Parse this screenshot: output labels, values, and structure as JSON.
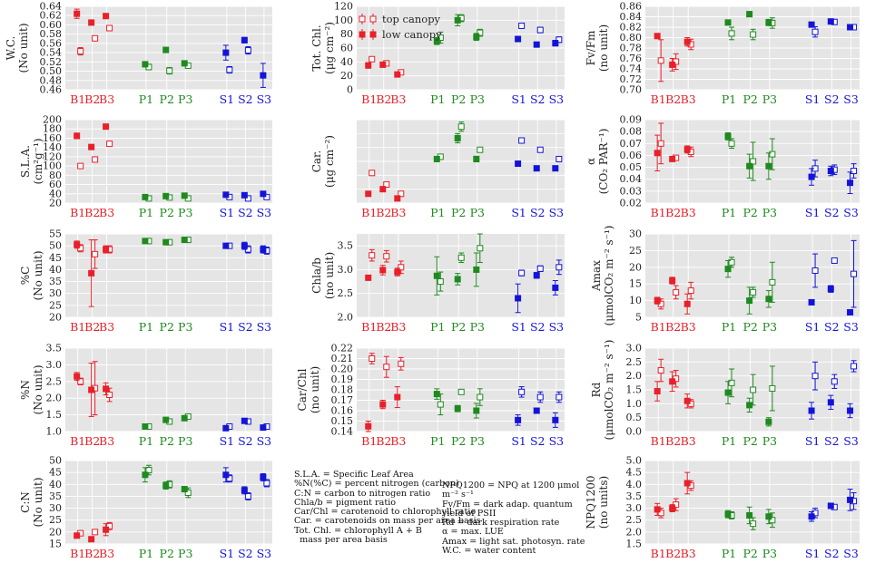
{
  "colors": {
    "B": "#e8202a",
    "P": "#1f8a1f",
    "S": "#1414d8",
    "panel_bg": "#e5e5e5",
    "grid": "#ffffff",
    "axis": "#555555"
  },
  "legend": {
    "top_label": "top canopy",
    "low_label": "low canopy"
  },
  "glossary": {
    "left": [
      "S.L.A. = Specific Leaf Area",
      "%N(%C) = percent nitrogen (carbon)",
      "C:N = carbon to nitrogen ratio",
      "Chla/b = pigment ratio",
      "Car/Chl = carotenoid to chlorophyll ratio",
      "Car. = carotenoids on mass per area basis",
      "Tot. Chl. = chlorophyll A + B",
      "  mass per area basis"
    ],
    "right": [
      "NPQ1200 = NPQ at 1200 μmol m⁻² s⁻¹",
      "Fv/Fm = dark adap. quantum yield of PSII",
      "Rd = dark respiration rate",
      "α = max. LUE",
      "Amax = light sat. photosyn. rate",
      "W.C. = water content"
    ]
  },
  "chart_data": [
    {
      "id": "wc",
      "type": "scatter",
      "ylabel_lines": [
        "W.C.",
        "(No unit)"
      ],
      "ylim": [
        0.46,
        0.64
      ],
      "yticks": [
        "0.46",
        "0.48",
        "0.50",
        "0.52",
        "0.54",
        "0.56",
        "0.58",
        "0.60",
        "0.62",
        "0.64"
      ],
      "categories": [
        "B1",
        "B2",
        "B3",
        "P1",
        "P2",
        "P3",
        "S1",
        "S2",
        "S3"
      ],
      "series": [
        {
          "name": "top canopy",
          "values": [
            0.543,
            0.571,
            0.593,
            0.509,
            0.501,
            0.512,
            0.503,
            0.545,
            null
          ],
          "err": [
            0.008,
            0.003,
            0.004,
            0.006,
            0.007,
            0.004,
            0.007,
            0.008,
            0
          ]
        },
        {
          "name": "low canopy",
          "values": [
            0.624,
            0.605,
            0.619,
            0.515,
            0.546,
            0.517,
            0.54,
            0.567,
            0.491
          ],
          "err": [
            0.01,
            0.003,
            0.002,
            0.004,
            0.004,
            0.003,
            0.016,
            0.006,
            0.026
          ]
        }
      ]
    },
    {
      "id": "totchl",
      "type": "scatter",
      "ylabel_lines": [
        "Tot. Chl.",
        "(μg cm⁻²)"
      ],
      "ylim": [
        0,
        120
      ],
      "yticks": [
        "0",
        "20",
        "40",
        "60",
        "80",
        "100",
        "120"
      ],
      "categories": [
        "B1",
        "B2",
        "B3",
        "P1",
        "P2",
        "P3",
        "S1",
        "S2",
        "S3"
      ],
      "series": [
        {
          "name": "top canopy",
          "values": [
            44,
            38,
            25,
            75,
            103,
            82,
            92,
            86,
            72
          ],
          "err": [
            3,
            2,
            2,
            8,
            5,
            5,
            3,
            4,
            4
          ]
        },
        {
          "name": "low canopy",
          "values": [
            35,
            36,
            22,
            70,
            100,
            76,
            73,
            65,
            67
          ],
          "err": [
            4,
            3,
            2,
            5,
            8,
            5,
            3,
            3,
            4
          ]
        }
      ]
    },
    {
      "id": "fvfm",
      "type": "scatter",
      "ylabel_lines": [
        "Fv/Fm",
        "(no unit)"
      ],
      "ylim": [
        0.7,
        0.86
      ],
      "yticks": [
        "0.70",
        "0.72",
        "0.74",
        "0.76",
        "0.78",
        "0.80",
        "0.82",
        "0.84",
        "0.86"
      ],
      "categories": [
        "B1",
        "B2",
        "B3",
        "P1",
        "P2",
        "P3",
        "S1",
        "S2",
        "S3"
      ],
      "series": [
        {
          "name": "top canopy",
          "values": [
            0.756,
            0.754,
            0.787,
            0.808,
            0.806,
            0.828,
            0.811,
            0.83,
            0.82
          ],
          "err": [
            0.04,
            0.015,
            0.01,
            0.012,
            0.01,
            0.01,
            0.01,
            0.003,
            0.004
          ]
        },
        {
          "name": "low canopy",
          "values": [
            0.803,
            0.748,
            0.792,
            0.829,
            0.845,
            0.829,
            0.825,
            0.831,
            0.82
          ],
          "err": [
            0.004,
            0.012,
            0.008,
            0.002,
            0.005,
            0.006,
            0.004,
            0.003,
            0.004
          ]
        }
      ]
    },
    {
      "id": "sla",
      "type": "scatter",
      "ylabel_lines": [
        "S.L.A.",
        "(cm²g⁻¹)"
      ],
      "ylim": [
        20,
        200
      ],
      "yticks": [
        "20",
        "40",
        "60",
        "80",
        "100",
        "120",
        "140",
        "160",
        "180",
        "200"
      ],
      "categories": [
        "B1",
        "B2",
        "B3",
        "P1",
        "P2",
        "P3",
        "S1",
        "S2",
        "S3"
      ],
      "series": [
        {
          "name": "top canopy",
          "values": [
            100,
            114,
            148,
            30,
            32,
            30,
            33,
            30,
            33
          ],
          "err": [
            2,
            2,
            3,
            2,
            2,
            2,
            2,
            2,
            2
          ]
        },
        {
          "name": "low canopy",
          "values": [
            165,
            141,
            185,
            33,
            35,
            36,
            38,
            37,
            40
          ],
          "err": [
            6,
            3,
            3,
            3,
            3,
            3,
            3,
            3,
            4
          ]
        }
      ]
    },
    {
      "id": "car",
      "type": "scatter",
      "ylabel_lines": [
        "Car.",
        "(μg cm⁻²)"
      ],
      "ylim": [
        3,
        21
      ],
      "yticks": [],
      "categories": [
        "B1",
        "B2",
        "B3",
        "P1",
        "P2",
        "P3",
        "S1",
        "S2",
        "S3"
      ],
      "series": [
        {
          "name": "top canopy",
          "values": [
            9.5,
            7.0,
            5.0,
            13.0,
            19.5,
            14.5,
            16.5,
            14.5,
            12.5
          ],
          "err": [
            0.4,
            0.4,
            0.4,
            0.5,
            1.0,
            0.5,
            0.4,
            0.4,
            0.4
          ]
        },
        {
          "name": "low canopy",
          "values": [
            5.0,
            6.0,
            4.0,
            12.5,
            17.0,
            12.5,
            11.5,
            10.5,
            10.5
          ],
          "err": [
            0.4,
            0.5,
            0.3,
            0.5,
            1.0,
            0.6,
            0.4,
            0.4,
            0.4
          ]
        }
      ]
    },
    {
      "id": "alpha",
      "type": "scatter",
      "ylabel_lines": [
        "α",
        "(CO₂ PAR⁻¹)"
      ],
      "ylim": [
        0.02,
        0.09
      ],
      "yticks": [
        "0.02",
        "0.03",
        "0.04",
        "0.05",
        "0.06",
        "0.07",
        "0.08",
        "0.09"
      ],
      "categories": [
        "B1",
        "B2",
        "B3",
        "P1",
        "P2",
        "P3",
        "S1",
        "S2",
        "S3"
      ],
      "series": [
        {
          "name": "top canopy",
          "values": [
            0.07,
            0.058,
            0.063,
            0.07,
            0.055,
            0.061,
            0.049,
            0.048,
            0.047
          ],
          "err": [
            0.017,
            0.002,
            0.004,
            0.004,
            0.016,
            0.013,
            0.007,
            0.004,
            0.006
          ]
        },
        {
          "name": "low canopy",
          "values": [
            0.062,
            0.057,
            0.065,
            0.076,
            0.051,
            0.051,
            0.042,
            0.047,
            0.037
          ],
          "err": [
            0.015,
            0.002,
            0.003,
            0.003,
            0.01,
            0.011,
            0.007,
            0.004,
            0.009
          ]
        }
      ]
    },
    {
      "id": "pc",
      "type": "scatter",
      "ylabel_lines": [
        "%C",
        "(No unit)"
      ],
      "ylim": [
        20,
        55
      ],
      "yticks": [
        "20",
        "25",
        "30",
        "35",
        "40",
        "45",
        "50",
        "55"
      ],
      "categories": [
        "B1",
        "B2",
        "B3",
        "P1",
        "P2",
        "P3",
        "S1",
        "S2",
        "S3"
      ],
      "series": [
        {
          "name": "top canopy",
          "values": [
            49,
            46.5,
            48.5,
            52,
            51.5,
            52.5,
            50,
            48.5,
            48
          ],
          "err": [
            1.5,
            6,
            1.5,
            0.6,
            0.6,
            0.5,
            0.7,
            1.5,
            1.5
          ]
        },
        {
          "name": "low canopy",
          "values": [
            50.5,
            38.5,
            48.5,
            52,
            51.5,
            52.5,
            50,
            50,
            48.5
          ],
          "err": [
            1.5,
            14,
            1.5,
            0.6,
            0.6,
            0.5,
            0.7,
            1.5,
            1.5
          ]
        }
      ]
    },
    {
      "id": "chlab",
      "type": "scatter",
      "ylabel_lines": [
        "Chla/b",
        "(no unit)"
      ],
      "ylim": [
        2.0,
        3.75
      ],
      "yticks": [
        "2.0",
        "2.5",
        "3.0",
        "3.5"
      ],
      "categories": [
        "B1",
        "B2",
        "B3",
        "P1",
        "P2",
        "P3",
        "S1",
        "S2",
        "S3"
      ],
      "series": [
        {
          "name": "top canopy",
          "values": [
            3.3,
            3.28,
            3.05,
            2.75,
            3.25,
            3.45,
            2.93,
            3.02,
            3.05
          ],
          "err": [
            0.12,
            0.12,
            0.13,
            0.2,
            0.1,
            0.3,
            0.06,
            0.06,
            0.15
          ]
        },
        {
          "name": "low canopy",
          "values": [
            2.83,
            2.99,
            2.95,
            2.87,
            2.8,
            3.0,
            2.4,
            2.88,
            2.62
          ],
          "err": [
            0.04,
            0.1,
            0.08,
            0.4,
            0.12,
            0.35,
            0.3,
            0.06,
            0.15
          ]
        }
      ]
    },
    {
      "id": "amax",
      "type": "scatter",
      "ylabel_lines": [
        "Amax",
        "(μmolCO₂ m⁻² s⁻¹)"
      ],
      "ylim": [
        5,
        30
      ],
      "yticks": [
        "5",
        "10",
        "15",
        "20",
        "25",
        "30"
      ],
      "categories": [
        "B1",
        "B2",
        "B3",
        "P1",
        "P2",
        "P3",
        "S1",
        "S2",
        "S3"
      ],
      "series": [
        {
          "name": "top canopy",
          "values": [
            9,
            12.5,
            13,
            21.5,
            12.5,
            15.5,
            19,
            22,
            18
          ],
          "err": [
            1.5,
            2,
            2.5,
            1.5,
            1.5,
            6,
            5,
            0.4,
            10
          ]
        },
        {
          "name": "low canopy",
          "values": [
            10,
            16,
            9,
            19.5,
            10,
            10.5,
            9.5,
            13.5,
            6.5
          ],
          "err": [
            1,
            1,
            3,
            2.5,
            4,
            2.5,
            0.7,
            1,
            0.4
          ]
        }
      ]
    },
    {
      "id": "pn",
      "type": "scatter",
      "ylabel_lines": [
        "%N",
        "(No unit)"
      ],
      "ylim": [
        1.0,
        3.5
      ],
      "yticks": [
        "1.0",
        "1.5",
        "2.0",
        "2.5",
        "3.0",
        "3.5"
      ],
      "categories": [
        "B1",
        "B2",
        "B3",
        "P1",
        "P2",
        "P3",
        "S1",
        "S2",
        "S3"
      ],
      "series": [
        {
          "name": "top canopy",
          "values": [
            2.5,
            2.3,
            2.1,
            1.15,
            1.3,
            1.45,
            1.15,
            1.3,
            1.15
          ],
          "err": [
            0.1,
            0.8,
            0.2,
            0.04,
            0.04,
            0.05,
            0.04,
            0.05,
            0.04
          ]
        },
        {
          "name": "low canopy",
          "values": [
            2.65,
            2.25,
            2.28,
            1.15,
            1.35,
            1.4,
            1.1,
            1.32,
            1.12
          ],
          "err": [
            0.12,
            0.8,
            0.18,
            0.04,
            0.04,
            0.05,
            0.04,
            0.05,
            0.04
          ]
        }
      ]
    },
    {
      "id": "carchl",
      "type": "scatter",
      "ylabel_lines": [
        "Car/Chl",
        "(no unit)"
      ],
      "ylim": [
        0.14,
        0.22
      ],
      "yticks": [
        "0.14",
        "0.15",
        "0.16",
        "0.17",
        "0.18",
        "0.19",
        "0.20",
        "0.21",
        "0.22"
      ],
      "categories": [
        "B1",
        "B2",
        "B3",
        "P1",
        "P2",
        "P3",
        "S1",
        "S2",
        "S3"
      ],
      "series": [
        {
          "name": "top canopy",
          "values": [
            0.21,
            0.202,
            0.205,
            0.166,
            0.178,
            0.173,
            0.178,
            0.173,
            0.173
          ],
          "err": [
            0.005,
            0.01,
            0.006,
            0.01,
            0.001,
            0.008,
            0.005,
            0.005,
            0.005
          ]
        },
        {
          "name": "low canopy",
          "values": [
            0.145,
            0.166,
            0.173,
            0.176,
            0.162,
            0.16,
            0.151,
            0.16,
            0.151
          ],
          "err": [
            0.005,
            0.004,
            0.01,
            0.005,
            0.003,
            0.007,
            0.005,
            0.002,
            0.007
          ]
        }
      ]
    },
    {
      "id": "rd",
      "type": "scatter",
      "ylabel_lines": [
        "Rd",
        "(μmolCO₂ m⁻² s⁻¹)"
      ],
      "ylim": [
        0.0,
        3.0
      ],
      "yticks": [
        "0.0",
        "0.5",
        "1.0",
        "1.5",
        "2.0",
        "2.5",
        "3.0"
      ],
      "categories": [
        "B1",
        "B2",
        "B3",
        "P1",
        "P2",
        "P3",
        "S1",
        "S2",
        "S3"
      ],
      "series": [
        {
          "name": "top canopy",
          "values": [
            2.2,
            1.9,
            1.0,
            1.75,
            1.5,
            1.55,
            2.0,
            1.8,
            2.35
          ],
          "err": [
            0.4,
            0.3,
            0.15,
            0.5,
            0.55,
            0.8,
            0.5,
            0.25,
            0.2
          ]
        },
        {
          "name": "low canopy",
          "values": [
            1.45,
            1.8,
            1.1,
            1.4,
            0.95,
            0.35,
            0.75,
            1.05,
            0.75
          ],
          "err": [
            0.35,
            0.35,
            0.25,
            0.4,
            0.25,
            0.15,
            0.3,
            0.25,
            0.25
          ]
        }
      ]
    },
    {
      "id": "cn",
      "type": "scatter",
      "ylabel_lines": [
        "C:N",
        "(No unit)"
      ],
      "ylim": [
        15,
        50
      ],
      "yticks": [
        "15",
        "20",
        "25",
        "30",
        "35",
        "40",
        "45",
        "50"
      ],
      "categories": [
        "B1",
        "B2",
        "B3",
        "P1",
        "P2",
        "P3",
        "S1",
        "S2",
        "S3"
      ],
      "series": [
        {
          "name": "top canopy",
          "values": [
            19.5,
            20,
            22.5,
            46,
            40,
            36.5,
            42.5,
            35,
            40.5
          ],
          "err": [
            0.6,
            1,
            1.5,
            2,
            1.5,
            2,
            1.5,
            1.5,
            1.5
          ]
        },
        {
          "name": "low canopy",
          "values": [
            18.5,
            17,
            21,
            44,
            39.5,
            38,
            44,
            37.5,
            43
          ],
          "err": [
            0.8,
            1,
            2.5,
            3,
            1.5,
            1,
            3,
            1.5,
            1.5
          ]
        }
      ]
    },
    {
      "id": "npq",
      "type": "scatter",
      "ylabel_lines": [
        "NPQ1200",
        "(no units)"
      ],
      "ylim": [
        1.5,
        5.0
      ],
      "yticks": [
        "1.5",
        "2.0",
        "2.5",
        "3.0",
        "3.5",
        "4.0",
        "4.5",
        "5.0"
      ],
      "categories": [
        "B1",
        "B2",
        "B3",
        "P1",
        "P2",
        "P3",
        "S1",
        "S2",
        "S3"
      ],
      "series": [
        {
          "name": "top canopy",
          "values": [
            2.8,
            3.15,
            3.95,
            2.7,
            2.35,
            2.5,
            2.8,
            3.05,
            3.3
          ],
          "err": [
            0.2,
            0.25,
            0.2,
            0.15,
            0.25,
            0.3,
            0.2,
            0.1,
            0.35
          ]
        },
        {
          "name": "low canopy",
          "values": [
            2.95,
            3.0,
            4.05,
            2.75,
            2.7,
            2.65,
            2.65,
            3.1,
            3.35
          ],
          "err": [
            0.25,
            0.15,
            0.45,
            0.15,
            0.35,
            0.3,
            0.2,
            0.1,
            0.45
          ]
        }
      ]
    }
  ]
}
